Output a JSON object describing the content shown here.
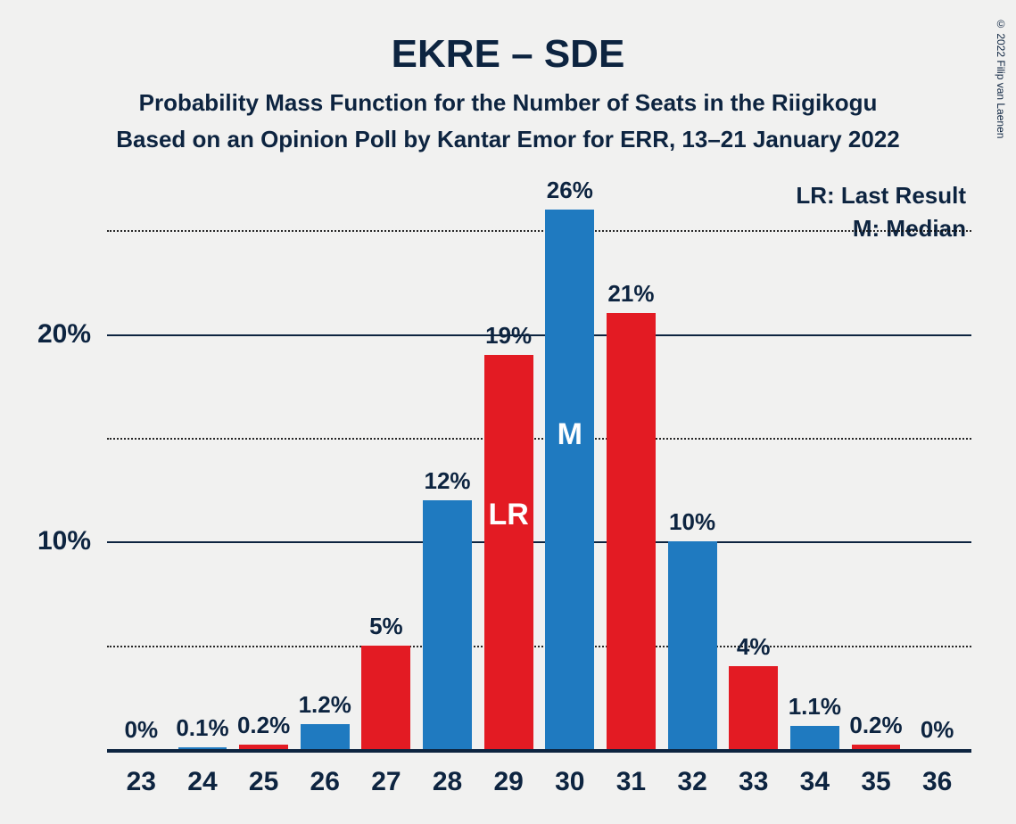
{
  "title": "EKRE – SDE",
  "subtitle1": "Probability Mass Function for the Number of Seats in the Riigikogu",
  "subtitle2": "Based on an Opinion Poll by Kantar Emor for ERR, 13–21 January 2022",
  "copyright": "© 2022 Filip van Laenen",
  "legend": {
    "lr": "LR: Last Result",
    "m": "M: Median"
  },
  "chart": {
    "type": "bar",
    "background_color": "#f1f1f0",
    "text_color": "#0d2440",
    "bar_width_pct": 80,
    "ymax": 27.5,
    "ygrid": [
      {
        "value": 5,
        "style": "dotted",
        "label": ""
      },
      {
        "value": 10,
        "style": "solid",
        "label": "10%"
      },
      {
        "value": 15,
        "style": "dotted",
        "label": ""
      },
      {
        "value": 20,
        "style": "solid",
        "label": "20%"
      },
      {
        "value": 25,
        "style": "dotted",
        "label": ""
      }
    ],
    "colors": {
      "red": "#e31b23",
      "blue": "#1f7ac0"
    },
    "categories": [
      23,
      24,
      25,
      26,
      27,
      28,
      29,
      30,
      31,
      32,
      33,
      34,
      35,
      36
    ],
    "bars": [
      {
        "x": 23,
        "value": 0,
        "label": "0%",
        "color": "red"
      },
      {
        "x": 24,
        "value": 0.1,
        "label": "0.1%",
        "color": "blue"
      },
      {
        "x": 25,
        "value": 0.2,
        "label": "0.2%",
        "color": "red"
      },
      {
        "x": 26,
        "value": 1.2,
        "label": "1.2%",
        "color": "blue"
      },
      {
        "x": 27,
        "value": 5,
        "label": "5%",
        "color": "red"
      },
      {
        "x": 28,
        "value": 12,
        "label": "12%",
        "color": "blue"
      },
      {
        "x": 29,
        "value": 19,
        "label": "19%",
        "color": "red",
        "marker": "LR"
      },
      {
        "x": 30,
        "value": 26,
        "label": "26%",
        "color": "blue",
        "marker": "M"
      },
      {
        "x": 31,
        "value": 21,
        "label": "21%",
        "color": "red"
      },
      {
        "x": 32,
        "value": 10,
        "label": "10%",
        "color": "blue"
      },
      {
        "x": 33,
        "value": 4,
        "label": "4%",
        "color": "red"
      },
      {
        "x": 34,
        "value": 1.1,
        "label": "1.1%",
        "color": "blue"
      },
      {
        "x": 35,
        "value": 0.2,
        "label": "0.2%",
        "color": "red"
      },
      {
        "x": 36,
        "value": 0,
        "label": "0%",
        "color": "blue"
      }
    ],
    "title_fontsize": 44,
    "subtitle_fontsize": 26,
    "axis_fontsize": 30,
    "barlabel_fontsize": 26
  }
}
